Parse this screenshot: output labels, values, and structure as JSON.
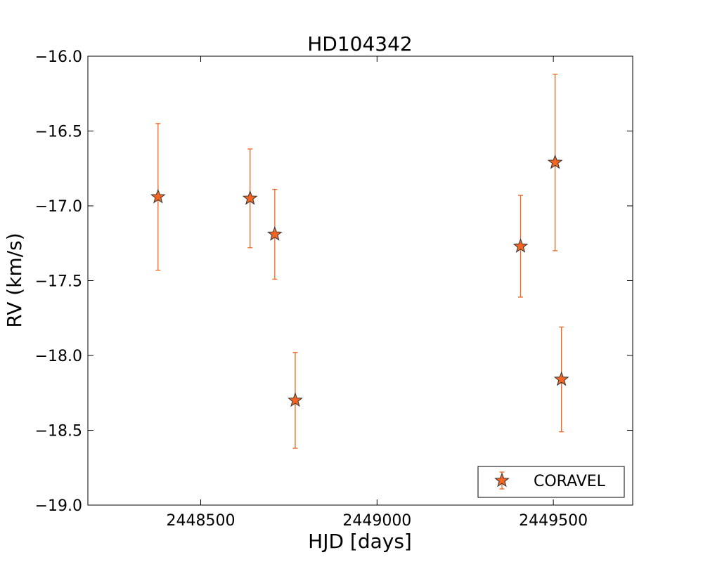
{
  "chart_data": {
    "type": "scatter",
    "title": "HD104342",
    "xlabel": "HJD [days]",
    "ylabel": "RV (km/s)",
    "xlim": [
      2448180,
      2449725
    ],
    "ylim": [
      -19.0,
      -16.0
    ],
    "xticks": [
      2448500,
      2449000,
      2449500
    ],
    "xtick_labels": [
      "2448500",
      "2449000",
      "2449500"
    ],
    "yticks": [
      -16.0,
      -16.5,
      -17.0,
      -17.5,
      -18.0,
      -18.5,
      -19.0
    ],
    "ytick_labels": [
      "−16.0",
      "−16.5",
      "−17.0",
      "−17.5",
      "−18.0",
      "−18.5",
      "−19.0"
    ],
    "grid": false,
    "legend": {
      "placement": "lower-right",
      "entries": [
        "CORAVEL"
      ]
    },
    "series": [
      {
        "name": "CORAVEL",
        "marker": "star",
        "color": "#f26522",
        "edge_color": "#333333",
        "errorbar_color": "#f26522",
        "points": [
          {
            "x": 2448379,
            "y": -16.94,
            "err": 0.49
          },
          {
            "x": 2448640,
            "y": -16.95,
            "err": 0.33
          },
          {
            "x": 2448710,
            "y": -17.19,
            "err": 0.3
          },
          {
            "x": 2448768,
            "y": -18.3,
            "err": 0.32
          },
          {
            "x": 2449407,
            "y": -17.27,
            "err": 0.34
          },
          {
            "x": 2449505,
            "y": -16.71,
            "err": 0.59
          },
          {
            "x": 2449523,
            "y": -18.16,
            "err": 0.35
          }
        ]
      }
    ]
  }
}
